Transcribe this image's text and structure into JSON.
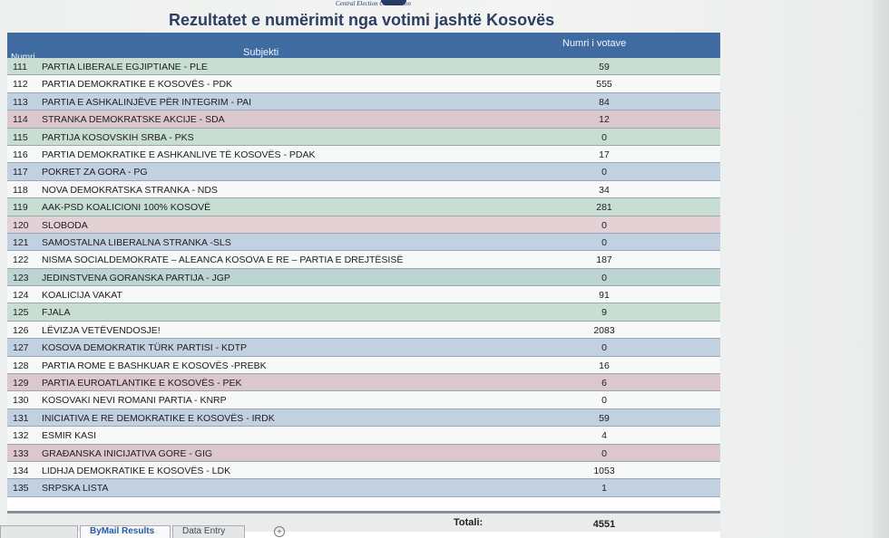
{
  "header": {
    "banner": "Central Election Commission",
    "title": "Rezultatet e numërimit nga votimi jashtë Kosovës"
  },
  "table": {
    "columns": {
      "nr": "Numri",
      "subject": "Subjekti",
      "votes": "Numri i votave"
    },
    "rows": [
      {
        "nr": "111",
        "subject": "PARTIA LIBERALE EGJIPTIANE - PLE",
        "votes": "59"
      },
      {
        "nr": "112",
        "subject": "PARTIA DEMOKRATIKE E KOSOVËS - PDK",
        "votes": "555"
      },
      {
        "nr": "113",
        "subject": "PARTIA E ASHKALINJËVE PËR INTEGRIM - PAI",
        "votes": "84"
      },
      {
        "nr": "114",
        "subject": "STRANKA DEMOKRATSKE AKCIJE - SDA",
        "votes": "12"
      },
      {
        "nr": "115",
        "subject": "PARTIJA KOSOVSKIH SRBA - PKS",
        "votes": "0"
      },
      {
        "nr": "116",
        "subject": "PARTIA DEMOKRATIKE E ASHKANLIVE TË KOSOVËS  - PDAK",
        "votes": "17"
      },
      {
        "nr": "117",
        "subject": "POKRET ZA GORA - PG",
        "votes": "0"
      },
      {
        "nr": "118",
        "subject": "NOVA DEMOKRATSKA STRANKA - NDS",
        "votes": "34"
      },
      {
        "nr": "119",
        "subject": "AAK-PSD KOALICIONI 100% KOSOVË",
        "votes": "281"
      },
      {
        "nr": "120",
        "subject": "SLOBODA",
        "votes": "0"
      },
      {
        "nr": "121",
        "subject": "SAMOSTALNA LIBERALNA STRANKA -SLS",
        "votes": "0"
      },
      {
        "nr": "122",
        "subject": "NISMA SOCIALDEMOKRATE – ALEANCA KOSOVA E RE – PARTIA E DREJTËSISË",
        "votes": "187"
      },
      {
        "nr": "123",
        "subject": "JEDINSTVENA GORANSKA PARTIJA - JGP",
        "votes": "0"
      },
      {
        "nr": "124",
        "subject": "KOALICIJA VAKAT",
        "votes": "91"
      },
      {
        "nr": "125",
        "subject": "FJALA",
        "votes": "9"
      },
      {
        "nr": "126",
        "subject": "LËVIZJA VETËVENDOSJE!",
        "votes": "2083"
      },
      {
        "nr": "127",
        "subject": "KOSOVA DEMOKRATIK TÜRK PARTISI - KDTP",
        "votes": "0"
      },
      {
        "nr": "128",
        "subject": "PARTIA ROME E BASHKUAR E KOSOVËS -PREBK",
        "votes": "16"
      },
      {
        "nr": "129",
        "subject": "PARTIA EUROATLANTIKE E KOSOVËS - PEK",
        "votes": "6"
      },
      {
        "nr": "130",
        "subject": "KOSOVAKI NEVI ROMANI PARTIA - KNRP",
        "votes": "0"
      },
      {
        "nr": "131",
        "subject": "INICIATIVA E RE DEMOKRATIKE E KOSOVËS - IRDK",
        "votes": "59"
      },
      {
        "nr": "132",
        "subject": "ESMIR KASI",
        "votes": "4"
      },
      {
        "nr": "133",
        "subject": "GRAĐANSKA INICIJATIVA GORE - GIG",
        "votes": "0"
      },
      {
        "nr": "134",
        "subject": "LIDHJA DEMOKRATIKE E KOSOVËS - LDK",
        "votes": "1053"
      },
      {
        "nr": "135",
        "subject": "SRPSKA LISTA",
        "votes": "1"
      }
    ],
    "total_label": "Totali:",
    "total_value": "4551"
  },
  "sheet_tabs": [
    {
      "label": "ByMail Results"
    },
    {
      "label": "Data Entry"
    }
  ],
  "row_colors": [
    "#c8ded3",
    "#f7f8f8",
    "#c2d1e2",
    "#dcc7cd",
    "#c8ded3",
    "#f7f8f8",
    "#c2d1e2",
    "#f7f8f8",
    "#c8ded3",
    "#e3d1d6",
    "#c2d1e2",
    "#f7f8f8",
    "#bcd5d2",
    "#f7f8f8",
    "#c8ded3",
    "#f7f8f8",
    "#c2d1e2",
    "#f7f8f8",
    "#dcc7cd",
    "#f7f8f8",
    "#c2d1e2",
    "#f7f8f8",
    "#dcc7cd",
    "#f7f8f8",
    "#c2d1e2"
  ]
}
